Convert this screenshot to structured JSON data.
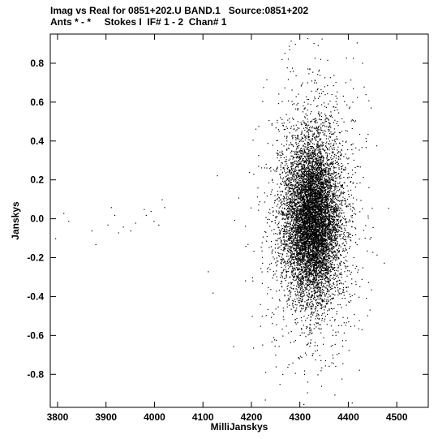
{
  "header": {
    "line1": "Imag vs Real for 0851+202.U BAND.1   Source:0851+202",
    "line2": "Ants * - *     Stokes I  IF# 1 - 2  Chan# 1"
  },
  "chart_data": {
    "type": "scatter",
    "xlabel": "MilliJanskys",
    "ylabel": "Janskys",
    "xlim": [
      3785,
      4565
    ],
    "ylim": [
      -0.97,
      0.95
    ],
    "xticks": [
      3800,
      3900,
      4000,
      4100,
      4200,
      4300,
      4400,
      4500
    ],
    "yticks": [
      0.8,
      0.6,
      0.4,
      0.2,
      0.0,
      -0.2,
      -0.4,
      -0.6,
      -0.8
    ],
    "xtick_labels": [
      "3800",
      "3900",
      "4000",
      "4100",
      "4200",
      "4300",
      "4400",
      "4500"
    ],
    "ytick_labels": [
      "0.8",
      "0.6",
      "0.4",
      "0.2",
      "0.0",
      "-0.2",
      "-0.4",
      "-0.6",
      "-0.8"
    ],
    "grid": false,
    "cluster": {
      "center_x": 4325,
      "center_y": 0.0,
      "sigma_x": 28,
      "sigma_y": 0.2,
      "approx_count": 9000
    },
    "outlier_points": [
      {
        "x": 3795,
        "y": -0.1
      },
      {
        "x": 3812,
        "y": 0.03
      },
      {
        "x": 3822,
        "y": -0.01
      },
      {
        "x": 3870,
        "y": -0.06
      },
      {
        "x": 3878,
        "y": -0.13
      },
      {
        "x": 3903,
        "y": -0.03
      },
      {
        "x": 3910,
        "y": 0.06
      },
      {
        "x": 3917,
        "y": 0.02
      },
      {
        "x": 3925,
        "y": -0.07
      },
      {
        "x": 3935,
        "y": -0.04
      },
      {
        "x": 3950,
        "y": -0.06
      },
      {
        "x": 3960,
        "y": -0.02
      },
      {
        "x": 3978,
        "y": 0.05
      },
      {
        "x": 3982,
        "y": 0.02
      },
      {
        "x": 3992,
        "y": 0.04
      },
      {
        "x": 3998,
        "y": -0.01
      },
      {
        "x": 4008,
        "y": -0.03
      },
      {
        "x": 4015,
        "y": 0.1
      },
      {
        "x": 4020,
        "y": 0.06
      },
      {
        "x": 4110,
        "y": -0.27
      },
      {
        "x": 4120,
        "y": -0.38
      }
    ]
  }
}
